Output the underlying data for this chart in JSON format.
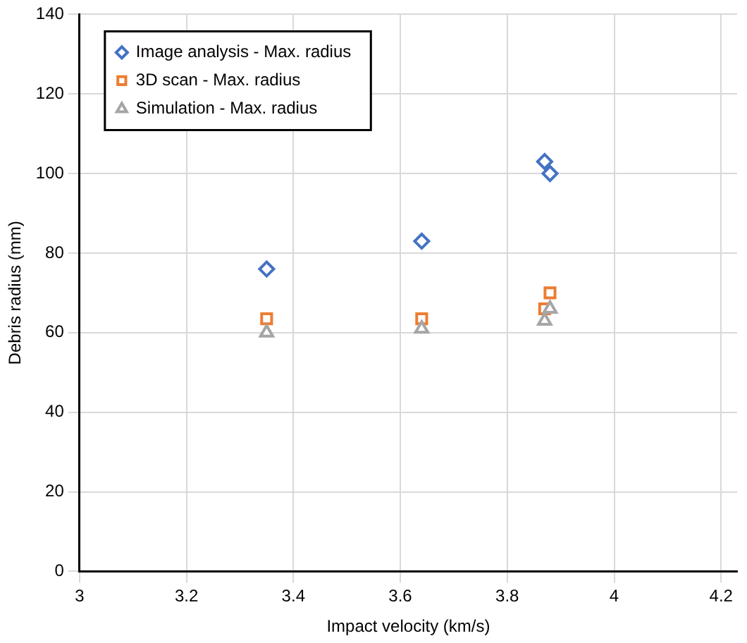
{
  "chart_data": {
    "type": "scatter",
    "xlabel": "Impact velocity (km/s)",
    "ylabel": "Debris radius (mm)",
    "xlim": [
      3,
      4.23
    ],
    "xticks": [
      3,
      3.2,
      3.4,
      3.6,
      3.8,
      4,
      4.2
    ],
    "ylim": [
      0,
      140
    ],
    "yticks": [
      0,
      20,
      40,
      60,
      80,
      100,
      120,
      140
    ],
    "grid": true,
    "legend": "top left",
    "series": [
      {
        "name": "Image analysis - Max. radius",
        "color": "#4472c4",
        "marker": "diamond",
        "x": [
          3.35,
          3.64,
          3.87,
          3.88
        ],
        "values": [
          76,
          83,
          103,
          100
        ]
      },
      {
        "name": "3D scan - Max. radius",
        "color": "#ed7d31",
        "marker": "square",
        "x": [
          3.35,
          3.64,
          3.87,
          3.88
        ],
        "values": [
          63.5,
          63.5,
          66,
          70
        ]
      },
      {
        "name": "Simulation - Max. radius",
        "color": "#a5a5a5",
        "marker": "triangle",
        "x": [
          3.35,
          3.64,
          3.87,
          3.88
        ],
        "values": [
          60,
          61,
          63,
          66
        ]
      }
    ]
  }
}
